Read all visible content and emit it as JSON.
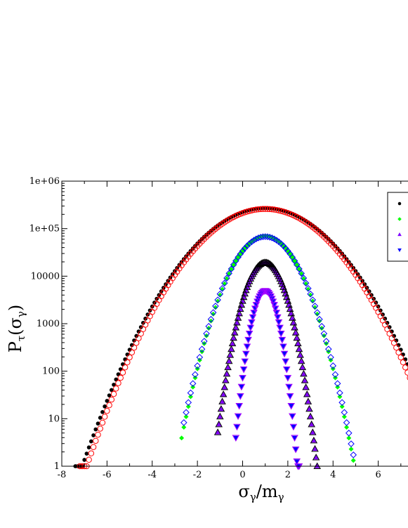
{
  "chart_data": {
    "type": "scatter",
    "title": "",
    "xlabel": "σγ/mγ",
    "ylabel": "Pτ(σγ)",
    "xlim": [
      -8,
      8
    ],
    "ylim": [
      1,
      1000000
    ],
    "yscale": "log",
    "grid": false,
    "legend_position": "top-right",
    "xticks": [
      -8,
      -6,
      -4,
      -2,
      0,
      2,
      4,
      6
    ],
    "xtick_labels": [
      "-8",
      "-6",
      "-4",
      "-2",
      "0",
      "2",
      "4",
      "6"
    ],
    "yticks": [
      1,
      10,
      100,
      1000,
      10000,
      100000,
      1000000
    ],
    "ytick_labels": [
      "1",
      "10",
      "100",
      "1000",
      "10000",
      "1e+05",
      "1e+06"
    ],
    "series": [
      {
        "marker": "filled-circle",
        "color": "#000000",
        "peak": 270000,
        "center": 1.0,
        "half_width": 8.1,
        "x_min": -7.4,
        "x_max": 8.0,
        "step": 0.1
      },
      {
        "marker": "open-circle",
        "color": "#ff0000",
        "peak": 260000,
        "center": 1.0,
        "half_width": 7.9,
        "x_min": -7.2,
        "x_max": 8.0,
        "step": 0.1
      },
      {
        "marker": "filled-diamond",
        "color": "#00ff00",
        "peak": 70000,
        "center": 1.0,
        "half_width": 3.95,
        "x_min": -2.7,
        "x_max": 4.9,
        "step": 0.1
      },
      {
        "marker": "open-diamond",
        "color": "#0000ff",
        "peak": 68000,
        "center": 1.0,
        "half_width": 4.0,
        "x_min": -2.6,
        "x_max": 4.9,
        "step": 0.1
      },
      {
        "marker": "filled-triangle-up",
        "color": "#8000ff",
        "peak": 19000,
        "center": 1.0,
        "half_width": 2.3,
        "x_min": -1.1,
        "x_max": 3.3,
        "step": 0.05
      },
      {
        "marker": "open-triangle-up",
        "color": "#000000",
        "peak": 19500,
        "center": 1.0,
        "half_width": 2.3,
        "x_min": -1.1,
        "x_max": 3.3,
        "step": 0.05
      },
      {
        "marker": "filled-triangle-down",
        "color": "#0000ff",
        "peak": 5000,
        "center": 1.0,
        "half_width": 1.42,
        "x_min": -0.3,
        "x_max": 2.5,
        "step": 0.05
      },
      {
        "marker": "open-triangle-down",
        "color": "#a000ff",
        "peak": 4900,
        "center": 1.0,
        "half_width": 1.42,
        "x_min": -0.3,
        "x_max": 2.5,
        "step": 0.05
      }
    ]
  },
  "legend": {
    "items": [
      {
        "marker": "filled-circle",
        "color": "#000000"
      },
      {
        "marker": "filled-diamond",
        "color": "#00ff00"
      },
      {
        "marker": "filled-triangle-up",
        "color": "#8000ff"
      },
      {
        "marker": "filled-triangle-down",
        "color": "#0000ff"
      }
    ]
  }
}
